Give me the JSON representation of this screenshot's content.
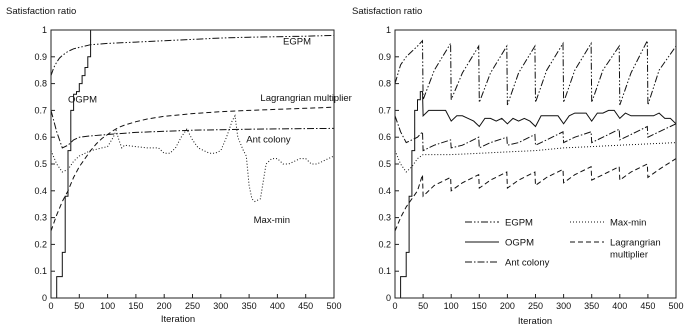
{
  "chart_data": [
    {
      "type": "line",
      "title": "",
      "ylabel": "Satisfaction ratio",
      "xlabel": "Iteration",
      "xlim": [
        0,
        500
      ],
      "ylim": [
        0,
        1
      ],
      "x_ticks": [
        0,
        50,
        100,
        150,
        200,
        250,
        300,
        350,
        400,
        450,
        500
      ],
      "y_ticks": [
        0,
        0.1,
        0.2,
        0.3,
        0.4,
        0.5,
        0.6,
        0.7,
        0.8,
        0.9,
        1
      ],
      "x_tick_labels": [
        "0",
        "50",
        "100",
        "150",
        "200",
        "250",
        "300",
        "350",
        "400",
        "450",
        "500"
      ],
      "y_tick_labels": [
        "0",
        "0.1",
        "0.2",
        "0.3",
        "0.4",
        "0.5",
        "0.6",
        "0.7",
        "0.8",
        "0.9",
        "1"
      ],
      "grid": false,
      "legend": "none (inline labels)",
      "annotations": [
        {
          "text": "EGPM",
          "x": 410,
          "y": 0.945
        },
        {
          "text": "OGPM",
          "x": 30,
          "y": 0.73
        },
        {
          "text": "Lagrangrian multiplier",
          "x": 370,
          "y": 0.735
        },
        {
          "text": "Ant colony",
          "x": 345,
          "y": 0.58
        },
        {
          "text": "Max-min",
          "x": 358,
          "y": 0.28
        }
      ],
      "series": [
        {
          "name": "EGPM",
          "style": "dashdotdot",
          "x": [
            0,
            5,
            10,
            15,
            20,
            30,
            40,
            50,
            70,
            100,
            150,
            200,
            250,
            300,
            350,
            400,
            450,
            500
          ],
          "y": [
            0.83,
            0.86,
            0.88,
            0.895,
            0.905,
            0.92,
            0.93,
            0.935,
            0.945,
            0.95,
            0.955,
            0.96,
            0.965,
            0.97,
            0.973,
            0.975,
            0.977,
            0.98
          ]
        },
        {
          "name": "OGPM",
          "style": "solid-step",
          "x": [
            0,
            10,
            10,
            20,
            20,
            25,
            25,
            30,
            30,
            35,
            35,
            40,
            40,
            45,
            45,
            50,
            50,
            55,
            55,
            60,
            60,
            65,
            65,
            70,
            70
          ],
          "y": [
            0,
            0,
            0.08,
            0.08,
            0.17,
            0.17,
            0.38,
            0.38,
            0.55,
            0.55,
            0.7,
            0.7,
            0.76,
            0.76,
            0.77,
            0.77,
            0.8,
            0.8,
            0.83,
            0.83,
            0.86,
            0.86,
            0.9,
            0.9,
            1.0
          ]
        },
        {
          "name": "Lagrangrian multiplier",
          "style": "dashed",
          "x": [
            0,
            10,
            20,
            30,
            40,
            50,
            60,
            70,
            80,
            90,
            100,
            110,
            120,
            130,
            150,
            170,
            200,
            250,
            300,
            350,
            400,
            450,
            500
          ],
          "y": [
            0.25,
            0.31,
            0.36,
            0.4,
            0.45,
            0.49,
            0.52,
            0.55,
            0.575,
            0.595,
            0.61,
            0.625,
            0.637,
            0.645,
            0.658,
            0.668,
            0.678,
            0.688,
            0.695,
            0.7,
            0.704,
            0.708,
            0.712
          ]
        },
        {
          "name": "Ant colony",
          "style": "dashdot",
          "x": [
            0,
            10,
            20,
            30,
            40,
            50,
            70,
            100,
            150,
            200,
            250,
            300,
            350,
            400,
            450,
            500
          ],
          "y": [
            0.7,
            0.62,
            0.56,
            0.57,
            0.59,
            0.6,
            0.605,
            0.61,
            0.618,
            0.622,
            0.626,
            0.628,
            0.63,
            0.631,
            0.632,
            0.633
          ]
        },
        {
          "name": "Max-min",
          "style": "dotted",
          "x": [
            0,
            10,
            20,
            30,
            40,
            50,
            60,
            70,
            80,
            90,
            100,
            110,
            115,
            120,
            125,
            130,
            150,
            170,
            190,
            200,
            210,
            220,
            230,
            240,
            250,
            260,
            270,
            280,
            290,
            300,
            310,
            320,
            325,
            330,
            340,
            345,
            350,
            355,
            360,
            370,
            380,
            390,
            400,
            410,
            420,
            430,
            440,
            450,
            460,
            470,
            480,
            490,
            500
          ],
          "y": [
            0.55,
            0.5,
            0.47,
            0.48,
            0.51,
            0.53,
            0.54,
            0.55,
            0.555,
            0.56,
            0.565,
            0.6,
            0.625,
            0.59,
            0.56,
            0.57,
            0.565,
            0.56,
            0.56,
            0.54,
            0.54,
            0.56,
            0.6,
            0.63,
            0.59,
            0.56,
            0.55,
            0.54,
            0.54,
            0.55,
            0.6,
            0.66,
            0.68,
            0.6,
            0.55,
            0.53,
            0.42,
            0.37,
            0.36,
            0.37,
            0.5,
            0.52,
            0.52,
            0.5,
            0.5,
            0.51,
            0.52,
            0.52,
            0.5,
            0.5,
            0.51,
            0.52,
            0.53
          ]
        }
      ]
    },
    {
      "type": "line",
      "title": "",
      "ylabel": "Satisfaction ratio",
      "xlabel": "Iteration",
      "xlim": [
        0,
        500
      ],
      "ylim": [
        0,
        1
      ],
      "x_ticks": [
        0,
        50,
        100,
        150,
        200,
        250,
        300,
        350,
        400,
        450,
        500
      ],
      "y_ticks": [
        0,
        0.1,
        0.2,
        0.3,
        0.4,
        0.5,
        0.6,
        0.7,
        0.8,
        0.9,
        1
      ],
      "x_tick_labels": [
        "0",
        "50",
        "100",
        "150",
        "200",
        "250",
        "300",
        "350",
        "400",
        "450",
        "500"
      ],
      "y_tick_labels": [
        "0",
        "0.1",
        "0.2",
        "0.3",
        "0.4",
        "0.5",
        "0.6",
        "0.7",
        "0.8",
        "0.9",
        "1"
      ],
      "grid": false,
      "legend": "bottom-right",
      "legend_entries": [
        {
          "label": "EGPM",
          "style": "dashdotdot"
        },
        {
          "label": "Max-min",
          "style": "dotted"
        },
        {
          "label": "OGPM",
          "style": "solid"
        },
        {
          "label": "Lagrangrian",
          "label2": "multiplier",
          "style": "dashed"
        },
        {
          "label": "Ant colony",
          "style": "dashdot"
        }
      ],
      "series": [
        {
          "name": "EGPM",
          "style": "dashdotdot",
          "x": [
            0,
            10,
            20,
            30,
            40,
            49,
            50,
            70,
            99,
            100,
            120,
            149,
            150,
            170,
            199,
            200,
            220,
            249,
            250,
            270,
            299,
            300,
            320,
            349,
            350,
            370,
            399,
            400,
            420,
            449,
            450,
            470,
            500
          ],
          "y": [
            0.8,
            0.87,
            0.9,
            0.92,
            0.94,
            0.96,
            0.74,
            0.85,
            0.95,
            0.74,
            0.84,
            0.94,
            0.73,
            0.84,
            0.94,
            0.72,
            0.84,
            0.94,
            0.73,
            0.85,
            0.95,
            0.73,
            0.85,
            0.95,
            0.73,
            0.85,
            0.94,
            0.72,
            0.84,
            0.96,
            0.72,
            0.85,
            0.94
          ]
        },
        {
          "name": "OGPM",
          "style": "solid",
          "x": [
            0,
            10,
            10,
            20,
            20,
            25,
            25,
            30,
            30,
            35,
            35,
            40,
            40,
            45,
            45,
            49,
            50,
            60,
            70,
            80,
            90,
            100,
            110,
            120,
            130,
            140,
            150,
            160,
            170,
            180,
            190,
            200,
            210,
            220,
            230,
            240,
            250,
            260,
            270,
            280,
            290,
            300,
            310,
            320,
            330,
            340,
            350,
            360,
            370,
            380,
            390,
            400,
            410,
            420,
            430,
            440,
            450,
            460,
            470,
            480,
            490,
            500
          ],
          "y": [
            0,
            0,
            0.08,
            0.08,
            0.17,
            0.17,
            0.38,
            0.38,
            0.55,
            0.55,
            0.7,
            0.7,
            0.74,
            0.74,
            0.77,
            0.77,
            0.68,
            0.7,
            0.7,
            0.7,
            0.7,
            0.66,
            0.68,
            0.68,
            0.67,
            0.66,
            0.64,
            0.67,
            0.67,
            0.66,
            0.67,
            0.65,
            0.67,
            0.66,
            0.67,
            0.66,
            0.64,
            0.68,
            0.68,
            0.68,
            0.68,
            0.65,
            0.68,
            0.69,
            0.69,
            0.69,
            0.66,
            0.69,
            0.69,
            0.7,
            0.7,
            0.67,
            0.69,
            0.68,
            0.68,
            0.68,
            0.68,
            0.68,
            0.69,
            0.67,
            0.67,
            0.65
          ]
        },
        {
          "name": "Lagrangrian multiplier",
          "style": "dashed",
          "x": [
            0,
            10,
            20,
            30,
            40,
            49,
            50,
            70,
            99,
            100,
            120,
            149,
            150,
            170,
            199,
            200,
            220,
            249,
            250,
            270,
            299,
            300,
            320,
            349,
            350,
            370,
            399,
            400,
            420,
            449,
            450,
            470,
            500
          ],
          "y": [
            0.25,
            0.3,
            0.34,
            0.37,
            0.4,
            0.46,
            0.38,
            0.42,
            0.45,
            0.4,
            0.43,
            0.46,
            0.41,
            0.44,
            0.47,
            0.41,
            0.44,
            0.47,
            0.42,
            0.45,
            0.48,
            0.43,
            0.46,
            0.49,
            0.44,
            0.46,
            0.49,
            0.44,
            0.47,
            0.5,
            0.45,
            0.48,
            0.52
          ]
        },
        {
          "name": "Ant colony",
          "style": "dashdot",
          "x": [
            0,
            10,
            20,
            30,
            40,
            49,
            50,
            70,
            99,
            100,
            120,
            149,
            150,
            170,
            199,
            200,
            220,
            249,
            250,
            270,
            299,
            300,
            320,
            349,
            350,
            370,
            399,
            400,
            420,
            449,
            450,
            470,
            500
          ],
          "y": [
            0.68,
            0.62,
            0.58,
            0.59,
            0.6,
            0.62,
            0.55,
            0.57,
            0.59,
            0.56,
            0.57,
            0.6,
            0.56,
            0.58,
            0.6,
            0.57,
            0.58,
            0.61,
            0.57,
            0.59,
            0.62,
            0.58,
            0.6,
            0.62,
            0.58,
            0.6,
            0.63,
            0.59,
            0.61,
            0.64,
            0.6,
            0.62,
            0.65
          ]
        },
        {
          "name": "Max-min",
          "style": "dotted",
          "x": [
            0,
            10,
            20,
            30,
            40,
            50,
            100,
            150,
            200,
            250,
            300,
            350,
            400,
            450,
            500
          ],
          "y": [
            0.55,
            0.5,
            0.47,
            0.49,
            0.52,
            0.535,
            0.535,
            0.54,
            0.545,
            0.55,
            0.56,
            0.565,
            0.57,
            0.575,
            0.58
          ]
        }
      ]
    }
  ]
}
